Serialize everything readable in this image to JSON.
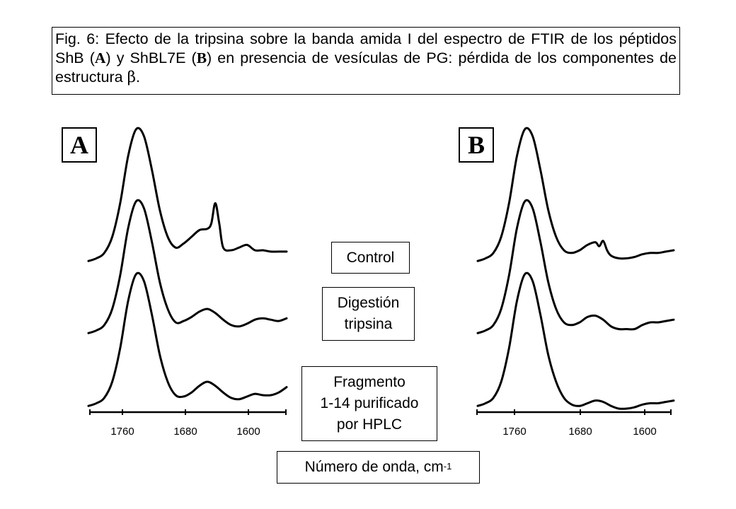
{
  "caption": {
    "part1": "Fig. 6: Efecto de la tripsina sobre la banda amida I del espectro de FTIR de los péptidos ShB (",
    "panel_a_ref": "A",
    "part2": ") y ShBL7E (",
    "panel_b_ref": "B",
    "part3": ") en presencia de vesículas de PG: pérdida de los componentes de estructura ",
    "beta": "β",
    "part4": "."
  },
  "panels": {
    "a_label": "A",
    "b_label": "B"
  },
  "legend": {
    "control": "Control",
    "digestion_line1": "Digestión",
    "digestion_line2": "tripsina",
    "fragment_line1": "Fragmento",
    "fragment_line2": "1-14 purificado",
    "fragment_line3": "por HPLC"
  },
  "axis": {
    "title_base": "Número de onda, cm",
    "title_exp": "-1",
    "ticks": [
      "1760",
      "1680",
      "1600"
    ]
  },
  "chart_data": [
    {
      "type": "line",
      "panel": "A",
      "x_axis": {
        "label": "Número de onda, cm-1",
        "ticks": [
          1760,
          1680,
          1600
        ],
        "reversed": true,
        "range": [
          1800,
          1550
        ]
      },
      "y_axis": {
        "shown": false,
        "units": "arbitrary, stacked offsets"
      },
      "grid": false,
      "series": [
        {
          "name": "Control",
          "x": [
            1800,
            1790,
            1780,
            1770,
            1760,
            1750,
            1740,
            1730,
            1720,
            1710,
            1700,
            1690,
            1680,
            1670,
            1660,
            1650,
            1645,
            1640,
            1635,
            1630,
            1620,
            1610,
            1600,
            1590,
            1580,
            1570,
            1560,
            1550
          ],
          "y": [
            0.02,
            0.04,
            0.08,
            0.2,
            0.45,
            0.8,
            1.0,
            0.95,
            0.7,
            0.4,
            0.2,
            0.12,
            0.15,
            0.2,
            0.25,
            0.26,
            0.3,
            0.45,
            0.3,
            0.12,
            0.1,
            0.12,
            0.14,
            0.1,
            0.1,
            0.09,
            0.09,
            0.09
          ]
        },
        {
          "name": "Digestión tripsina",
          "x": [
            1800,
            1790,
            1780,
            1770,
            1760,
            1750,
            1740,
            1730,
            1720,
            1710,
            1700,
            1690,
            1680,
            1670,
            1660,
            1650,
            1640,
            1630,
            1620,
            1610,
            1600,
            1590,
            1580,
            1570,
            1560,
            1550
          ],
          "y": [
            0.02,
            0.04,
            0.08,
            0.2,
            0.45,
            0.8,
            1.0,
            0.95,
            0.7,
            0.4,
            0.2,
            0.1,
            0.11,
            0.14,
            0.18,
            0.2,
            0.17,
            0.12,
            0.08,
            0.07,
            0.09,
            0.12,
            0.13,
            0.12,
            0.11,
            0.13
          ]
        },
        {
          "name": "Fragmento 1-14 purificado por HPLC",
          "x": [
            1800,
            1790,
            1780,
            1770,
            1760,
            1750,
            1740,
            1730,
            1720,
            1710,
            1700,
            1690,
            1680,
            1670,
            1660,
            1650,
            1640,
            1630,
            1620,
            1610,
            1600,
            1590,
            1580,
            1570,
            1560,
            1550
          ],
          "y": [
            0.02,
            0.04,
            0.08,
            0.2,
            0.45,
            0.8,
            1.0,
            0.95,
            0.7,
            0.4,
            0.2,
            0.1,
            0.09,
            0.12,
            0.17,
            0.2,
            0.17,
            0.12,
            0.08,
            0.07,
            0.09,
            0.11,
            0.1,
            0.1,
            0.12,
            0.16
          ]
        }
      ]
    },
    {
      "type": "line",
      "panel": "B",
      "x_axis": {
        "label": "Número de onda, cm-1",
        "ticks": [
          1760,
          1680,
          1600
        ],
        "reversed": true,
        "range": [
          1800,
          1550
        ]
      },
      "y_axis": {
        "shown": false,
        "units": "arbitrary, stacked offsets"
      },
      "grid": false,
      "series": [
        {
          "name": "Control",
          "x": [
            1800,
            1790,
            1780,
            1770,
            1760,
            1750,
            1740,
            1730,
            1720,
            1710,
            1700,
            1690,
            1680,
            1670,
            1660,
            1650,
            1645,
            1640,
            1635,
            1630,
            1620,
            1610,
            1600,
            1590,
            1580,
            1570,
            1560,
            1550
          ],
          "y": [
            0.02,
            0.04,
            0.08,
            0.2,
            0.45,
            0.8,
            1.0,
            0.95,
            0.7,
            0.4,
            0.2,
            0.1,
            0.08,
            0.1,
            0.14,
            0.16,
            0.13,
            0.17,
            0.1,
            0.06,
            0.04,
            0.04,
            0.05,
            0.07,
            0.08,
            0.08,
            0.09,
            0.1
          ]
        },
        {
          "name": "Digestión tripsina",
          "x": [
            1800,
            1790,
            1780,
            1770,
            1760,
            1750,
            1740,
            1730,
            1720,
            1710,
            1700,
            1690,
            1680,
            1670,
            1660,
            1650,
            1640,
            1630,
            1620,
            1610,
            1600,
            1590,
            1580,
            1570,
            1560,
            1550
          ],
          "y": [
            0.02,
            0.04,
            0.08,
            0.2,
            0.45,
            0.8,
            1.0,
            0.95,
            0.7,
            0.4,
            0.2,
            0.1,
            0.08,
            0.1,
            0.14,
            0.15,
            0.12,
            0.07,
            0.05,
            0.05,
            0.05,
            0.08,
            0.1,
            0.1,
            0.11,
            0.12
          ]
        },
        {
          "name": "Fragmento 1-14 purificado por HPLC",
          "x": [
            1800,
            1790,
            1780,
            1770,
            1760,
            1750,
            1740,
            1730,
            1720,
            1710,
            1700,
            1690,
            1680,
            1670,
            1660,
            1650,
            1640,
            1630,
            1620,
            1610,
            1600,
            1590,
            1580,
            1570,
            1560,
            1550
          ],
          "y": [
            0.02,
            0.04,
            0.08,
            0.2,
            0.45,
            0.8,
            1.0,
            0.95,
            0.7,
            0.4,
            0.2,
            0.08,
            0.03,
            0.02,
            0.04,
            0.06,
            0.05,
            0.02,
            0.0,
            0.0,
            0.01,
            0.03,
            0.04,
            0.04,
            0.05,
            0.06
          ]
        }
      ]
    }
  ]
}
